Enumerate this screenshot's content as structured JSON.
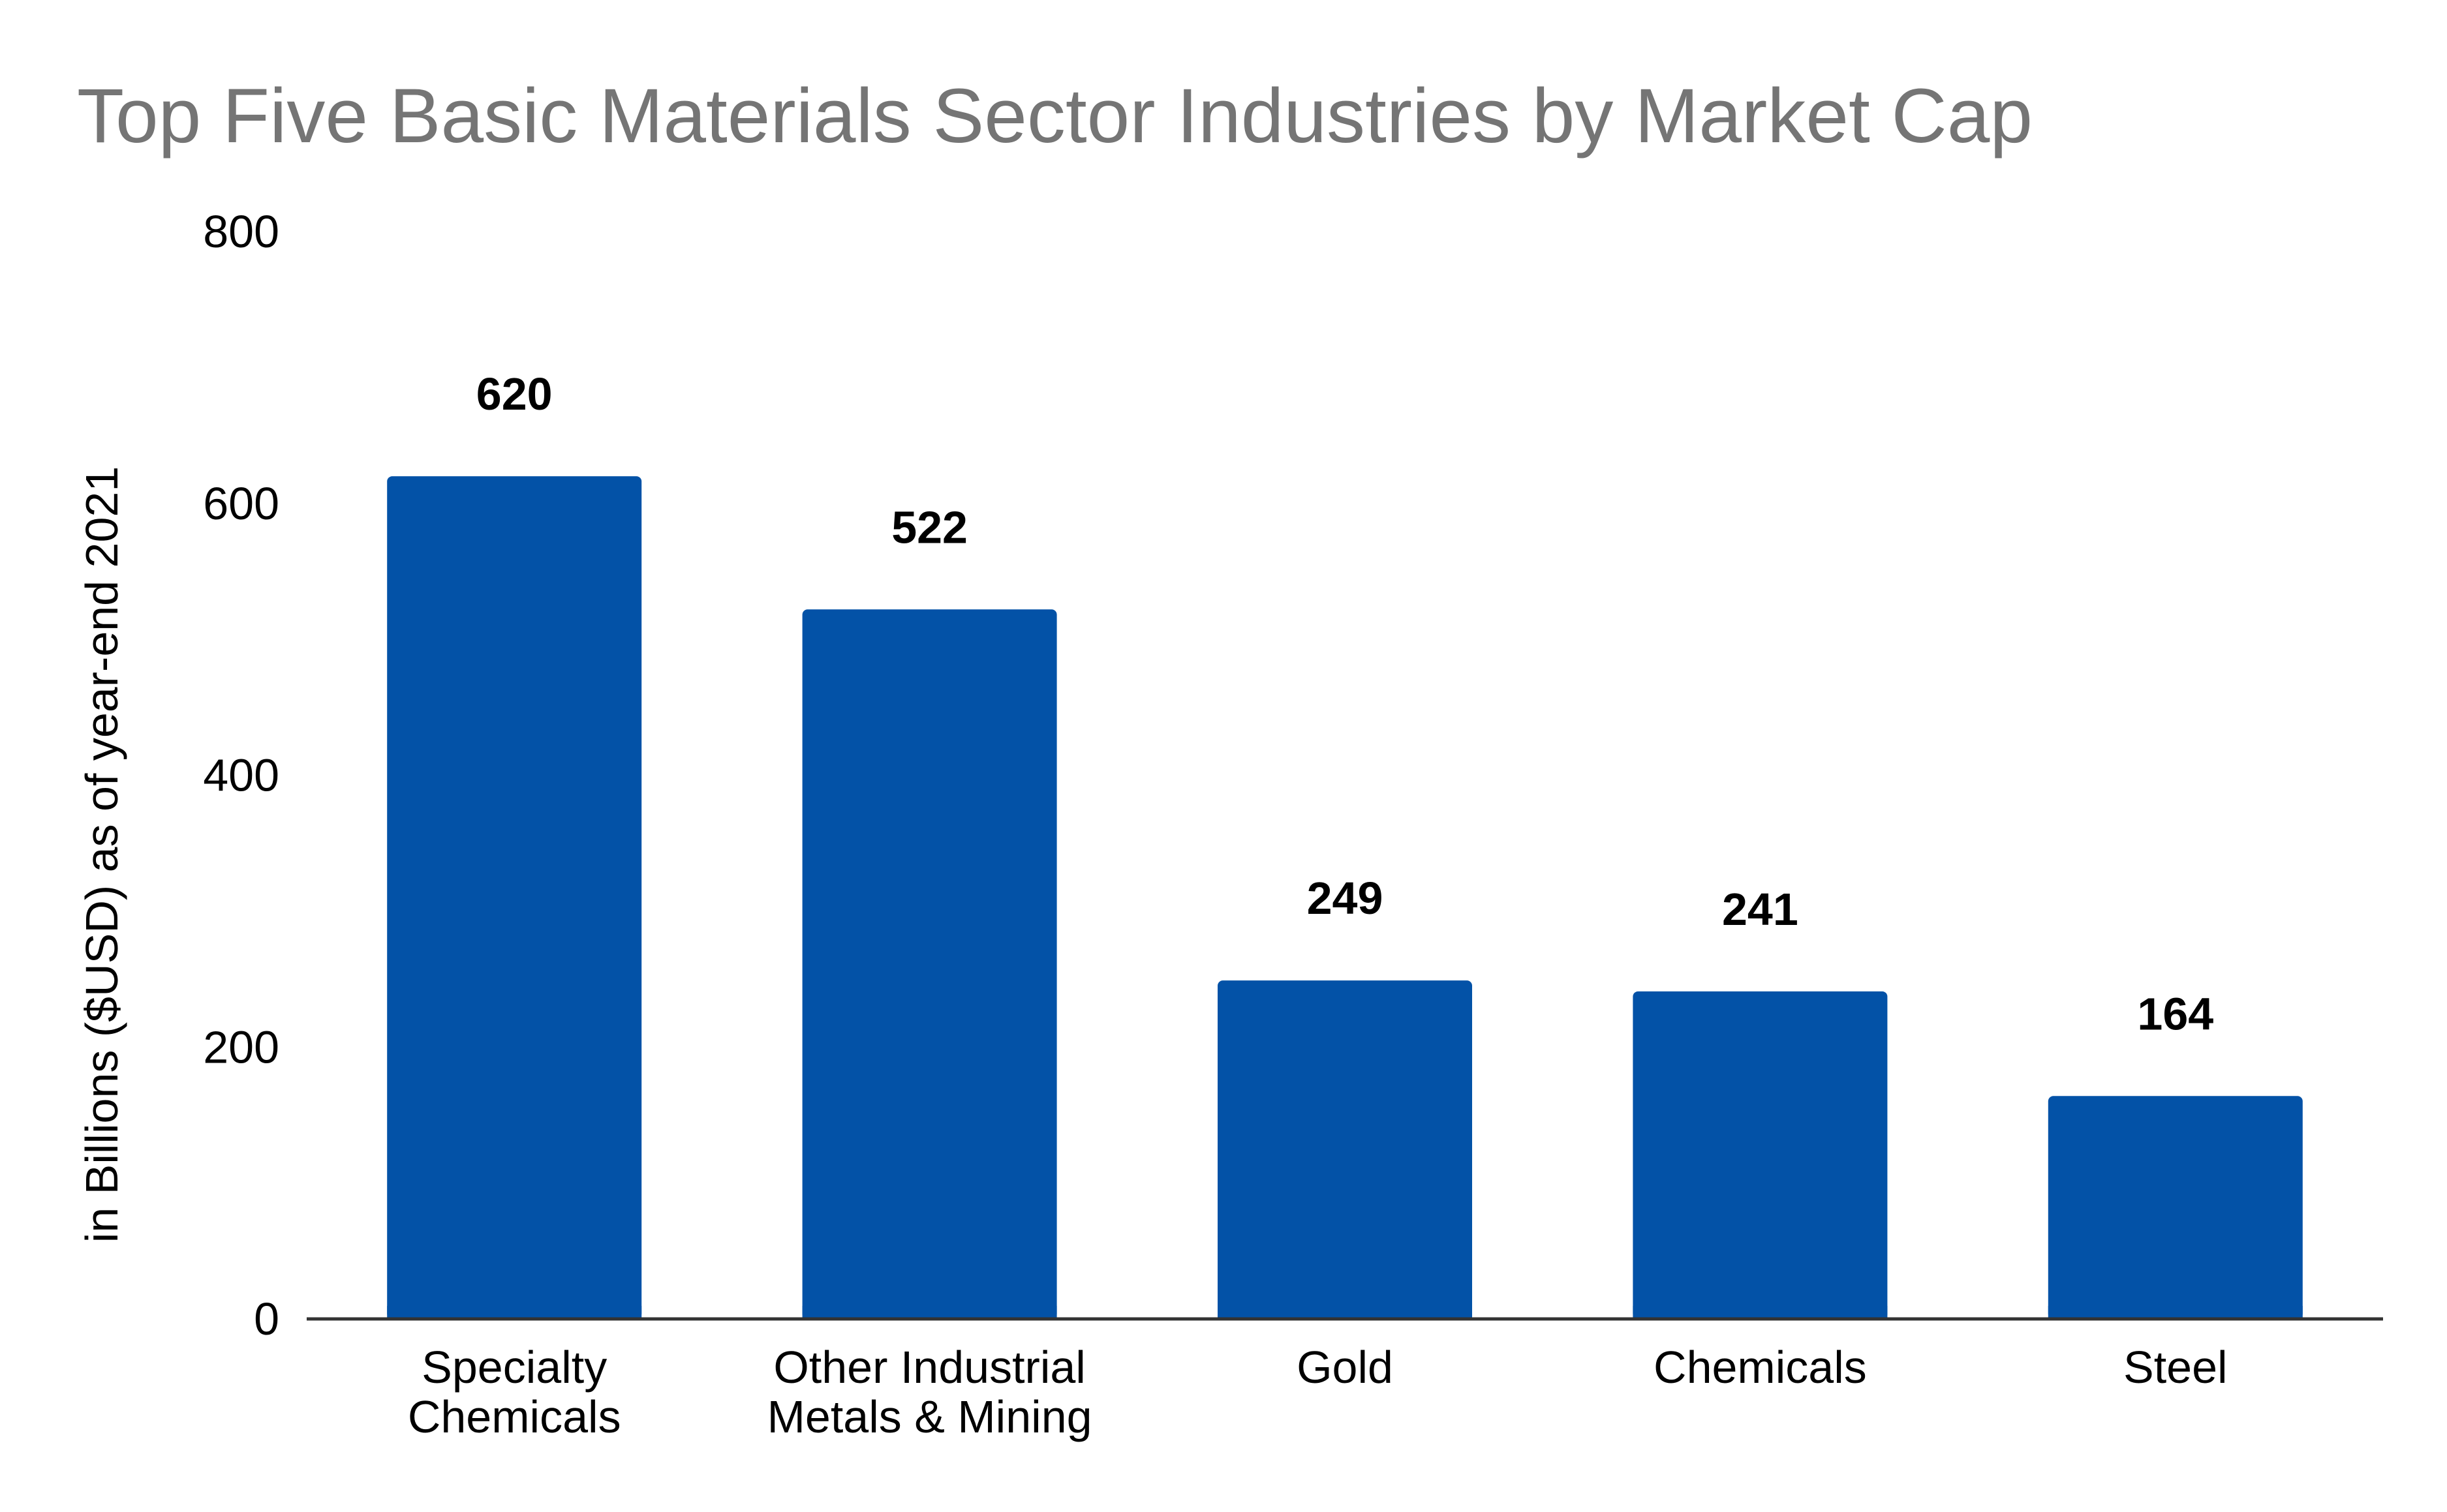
{
  "chart_data": {
    "type": "bar",
    "title": "Top Five Basic Materials Sector Industries by Market Cap",
    "xlabel": "",
    "ylabel": "in Billions ($USD) as of year-end 2021",
    "ylim": [
      0,
      800
    ],
    "yticks": [
      0,
      200,
      400,
      600,
      800
    ],
    "grid": false,
    "legend": "none",
    "categories": [
      [
        "Specialty",
        "Chemicals"
      ],
      [
        "Other Industrial",
        "Metals & Mining"
      ],
      [
        "Gold"
      ],
      [
        "Chemicals"
      ],
      [
        "Steel"
      ]
    ],
    "values": [
      620,
      522,
      249,
      241,
      164
    ],
    "data_labels": [
      "620",
      "522",
      "249",
      "241",
      "164"
    ],
    "bar_color": "#0352a7",
    "axis_color": "#333333",
    "title_color": "#757575"
  }
}
